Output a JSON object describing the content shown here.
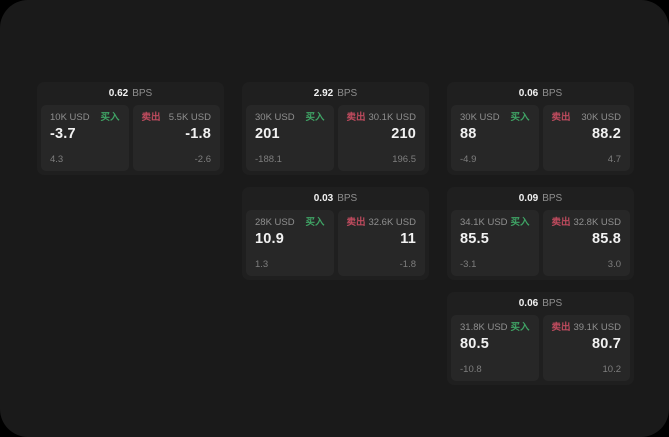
{
  "theme": {
    "window_bg": "#1a1a1a",
    "card_bg": "#1f1f1f",
    "panel_bg": "#272727",
    "value_text": "#f2f2f2",
    "label_text": "#8f8f8f",
    "sub_text": "#7e7e7e",
    "buy_green": "#3fa465",
    "sell_red": "#bf4b5e"
  },
  "labels": {
    "bps_unit": "BPS",
    "buy": "买入",
    "sell": "卖出"
  },
  "cards": [
    {
      "row": 1,
      "col": 1,
      "bps": "0.62",
      "buy": {
        "amount": "10K USD",
        "value": "-3.7",
        "sub": "4.3"
      },
      "sell": {
        "amount": "5.5K USD",
        "value": "-1.8",
        "sub": "-2.6"
      }
    },
    {
      "row": 1,
      "col": 2,
      "bps": "2.92",
      "buy": {
        "amount": "30K USD",
        "value": "201",
        "sub": "-188.1"
      },
      "sell": {
        "amount": "30.1K USD",
        "value": "210",
        "sub": "196.5"
      }
    },
    {
      "row": 1,
      "col": 3,
      "bps": "0.06",
      "buy": {
        "amount": "30K USD",
        "value": "88",
        "sub": "-4.9"
      },
      "sell": {
        "amount": "30K USD",
        "value": "88.2",
        "sub": "4.7"
      }
    },
    {
      "row": 2,
      "col": 2,
      "bps": "0.03",
      "buy": {
        "amount": "28K USD",
        "value": "10.9",
        "sub": "1.3"
      },
      "sell": {
        "amount": "32.6K USD",
        "value": "11",
        "sub": "-1.8"
      }
    },
    {
      "row": 2,
      "col": 3,
      "bps": "0.09",
      "buy": {
        "amount": "34.1K USD",
        "value": "85.5",
        "sub": "-3.1"
      },
      "sell": {
        "amount": "32.8K USD",
        "value": "85.8",
        "sub": "3.0"
      }
    },
    {
      "row": 3,
      "col": 3,
      "bps": "0.06",
      "buy": {
        "amount": "31.8K USD",
        "value": "80.5",
        "sub": "-10.8"
      },
      "sell": {
        "amount": "39.1K USD",
        "value": "80.7",
        "sub": "10.2"
      }
    }
  ]
}
